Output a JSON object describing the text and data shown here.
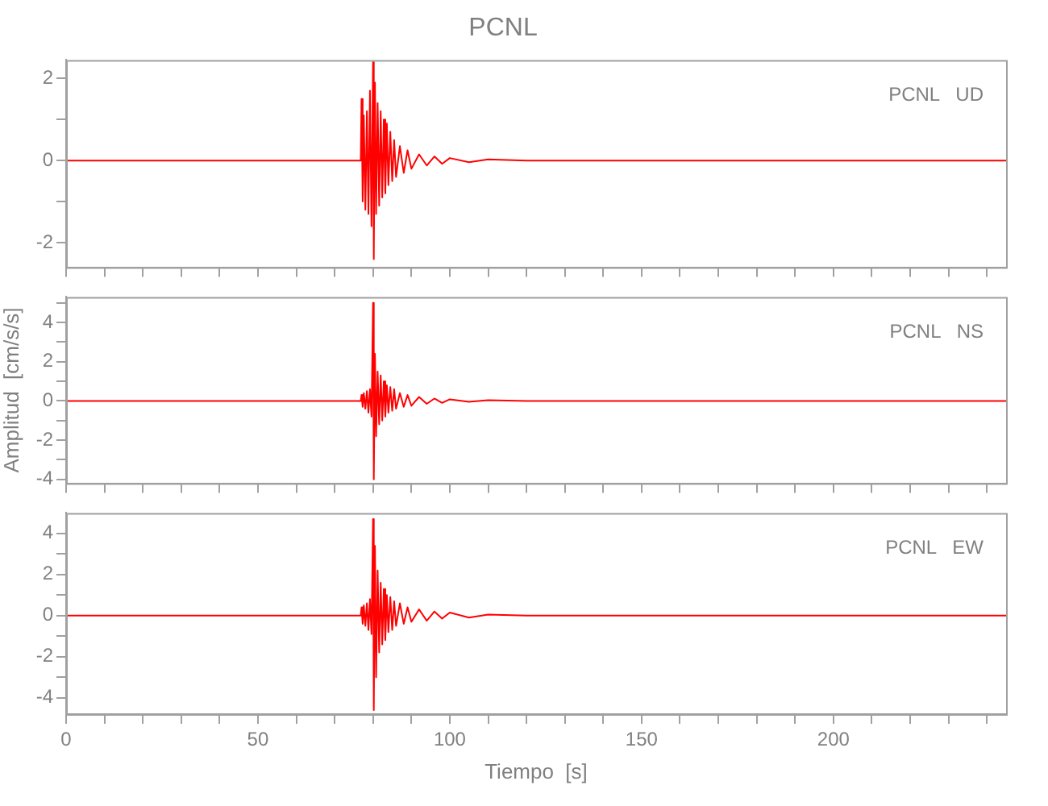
{
  "chart_data": [
    {
      "type": "line",
      "title": "PCNL",
      "annotations": [
        "PCNL   UD"
      ],
      "color": "#ff0000",
      "marker": "none",
      "tick_labels": "y",
      "x": [
        0,
        76.8,
        77,
        77.3,
        77.6,
        78,
        78.4,
        78.8,
        79.2,
        79.6,
        80,
        80.2,
        80.5,
        80.8,
        81.2,
        81.6,
        82,
        82.4,
        82.8,
        83.2,
        83.6,
        84,
        84.5,
        85,
        85.5,
        86,
        87,
        88,
        89,
        90,
        92,
        94,
        96,
        98,
        100,
        105,
        110,
        120,
        245
      ],
      "values": [
        0,
        0,
        1.5,
        -1.0,
        1.1,
        -1.2,
        1.2,
        -1.3,
        1.7,
        -1.6,
        2.4,
        -2.4,
        1.9,
        -1.3,
        1.4,
        -1.1,
        1.2,
        -0.9,
        1.0,
        -0.8,
        0.9,
        -0.6,
        0.7,
        -0.5,
        0.5,
        -0.4,
        0.35,
        -0.3,
        0.25,
        -0.2,
        0.15,
        -0.12,
        0.1,
        -0.08,
        0.06,
        -0.04,
        0.03,
        0,
        0
      ],
      "xlim": [
        0,
        245
      ],
      "xticks": [
        0,
        {
          "value": 10,
          "label": null
        },
        {
          "value": 20,
          "label": null
        },
        {
          "value": 30,
          "label": null
        },
        {
          "value": 40,
          "label": null
        },
        50,
        {
          "value": 60,
          "label": null
        },
        {
          "value": 70,
          "label": null
        },
        {
          "value": 80,
          "label": null
        },
        {
          "value": 90,
          "label": null
        },
        100,
        {
          "value": 110,
          "label": null
        },
        {
          "value": 120,
          "label": null
        },
        {
          "value": 130,
          "label": null
        },
        {
          "value": 140,
          "label": null
        },
        150,
        {
          "value": 160,
          "label": null
        },
        {
          "value": 170,
          "label": null
        },
        {
          "value": 180,
          "label": null
        },
        {
          "value": 190,
          "label": null
        },
        200,
        {
          "value": 210,
          "label": null
        },
        {
          "value": 220,
          "label": null
        },
        {
          "value": 230,
          "label": null
        },
        {
          "value": 240,
          "label": null
        }
      ],
      "ylim": [
        -2.6,
        2.45
      ],
      "yticks": [
        -2,
        {
          "value": -1,
          "label": null
        },
        0,
        {
          "value": 1,
          "label": null
        },
        2
      ]
    },
    {
      "type": "line",
      "ylabel": "Amplitud  [cm/s/s]",
      "annotations": [
        "PCNL   NS"
      ],
      "color": "#ff0000",
      "marker": "none",
      "tick_labels": "y",
      "x": [
        0,
        76.8,
        77,
        77.3,
        77.6,
        78,
        78.4,
        78.8,
        79.2,
        79.6,
        80,
        80.2,
        80.5,
        80.8,
        81.2,
        81.6,
        82,
        82.4,
        82.8,
        83.2,
        83.6,
        84,
        84.5,
        85,
        85.5,
        86,
        87,
        88,
        89,
        90,
        92,
        94,
        96,
        98,
        100,
        105,
        110,
        120,
        245
      ],
      "values": [
        0,
        0,
        0.3,
        -0.3,
        0.4,
        -0.4,
        0.5,
        -0.6,
        0.6,
        -0.8,
        5.0,
        -4.0,
        2.4,
        -1.8,
        1.5,
        -1.2,
        1.3,
        -1.0,
        1.0,
        -0.8,
        0.8,
        -0.6,
        0.7,
        -0.5,
        0.6,
        -0.4,
        0.4,
        -0.3,
        0.3,
        -0.25,
        0.2,
        -0.15,
        0.12,
        -0.1,
        0.08,
        -0.05,
        0.04,
        0,
        0
      ],
      "xlim": [
        0,
        245
      ],
      "xticks": [
        0,
        {
          "value": 10,
          "label": null
        },
        {
          "value": 20,
          "label": null
        },
        {
          "value": 30,
          "label": null
        },
        {
          "value": 40,
          "label": null
        },
        50,
        {
          "value": 60,
          "label": null
        },
        {
          "value": 70,
          "label": null
        },
        {
          "value": 80,
          "label": null
        },
        {
          "value": 90,
          "label": null
        },
        100,
        {
          "value": 110,
          "label": null
        },
        {
          "value": 120,
          "label": null
        },
        {
          "value": 130,
          "label": null
        },
        {
          "value": 140,
          "label": null
        },
        150,
        {
          "value": 160,
          "label": null
        },
        {
          "value": 170,
          "label": null
        },
        {
          "value": 180,
          "label": null
        },
        {
          "value": 190,
          "label": null
        },
        200,
        {
          "value": 210,
          "label": null
        },
        {
          "value": 220,
          "label": null
        },
        {
          "value": 230,
          "label": null
        },
        {
          "value": 240,
          "label": null
        }
      ],
      "ylim": [
        -4.2,
        5.3
      ],
      "yticks": [
        -4,
        {
          "value": -3,
          "label": null
        },
        -2,
        {
          "value": -1,
          "label": null
        },
        0,
        {
          "value": 1,
          "label": null
        },
        2,
        {
          "value": 3,
          "label": null
        },
        4,
        {
          "value": 5,
          "label": null
        }
      ]
    },
    {
      "type": "line",
      "xlabel": "Tiempo  [s]",
      "annotations": [
        "PCNL   EW"
      ],
      "color": "#ff0000",
      "marker": "none",
      "x": [
        0,
        76.8,
        77,
        77.3,
        77.6,
        78,
        78.4,
        78.8,
        79.2,
        79.6,
        80,
        80.2,
        80.5,
        80.8,
        81.2,
        81.6,
        82,
        82.4,
        82.8,
        83.2,
        83.6,
        84,
        84.5,
        85,
        85.5,
        86,
        87,
        88,
        89,
        90,
        92,
        94,
        96,
        98,
        100,
        105,
        110,
        120,
        245
      ],
      "values": [
        0,
        0,
        0.4,
        -0.4,
        0.5,
        -0.5,
        0.6,
        -0.7,
        0.8,
        -0.9,
        4.7,
        -4.6,
        3.4,
        -3.0,
        2.2,
        -1.8,
        1.6,
        -1.4,
        1.3,
        -1.2,
        1.0,
        -0.8,
        0.9,
        -0.7,
        0.7,
        -0.5,
        0.6,
        -0.4,
        0.4,
        -0.3,
        0.3,
        -0.25,
        0.2,
        -0.15,
        0.15,
        -0.1,
        0.05,
        0,
        0
      ],
      "xlim": [
        0,
        245
      ],
      "xticks": [
        0,
        {
          "value": 10,
          "label": null
        },
        {
          "value": 20,
          "label": null
        },
        {
          "value": 30,
          "label": null
        },
        {
          "value": 40,
          "label": null
        },
        50,
        {
          "value": 60,
          "label": null
        },
        {
          "value": 70,
          "label": null
        },
        {
          "value": 80,
          "label": null
        },
        {
          "value": 90,
          "label": null
        },
        100,
        {
          "value": 110,
          "label": null
        },
        {
          "value": 120,
          "label": null
        },
        {
          "value": 130,
          "label": null
        },
        {
          "value": 140,
          "label": null
        },
        150,
        {
          "value": 160,
          "label": null
        },
        {
          "value": 170,
          "label": null
        },
        {
          "value": 180,
          "label": null
        },
        {
          "value": 190,
          "label": null
        },
        200,
        {
          "value": 210,
          "label": null
        },
        {
          "value": 220,
          "label": null
        },
        {
          "value": 230,
          "label": null
        },
        {
          "value": 240,
          "label": null
        }
      ],
      "ylim": [
        -4.8,
        5.0
      ],
      "yticks": [
        -4,
        {
          "value": -3,
          "label": null
        },
        -2,
        {
          "value": -1,
          "label": null
        },
        0,
        {
          "value": 1,
          "label": null
        },
        2,
        {
          "value": 3,
          "label": null
        },
        4
      ]
    }
  ]
}
